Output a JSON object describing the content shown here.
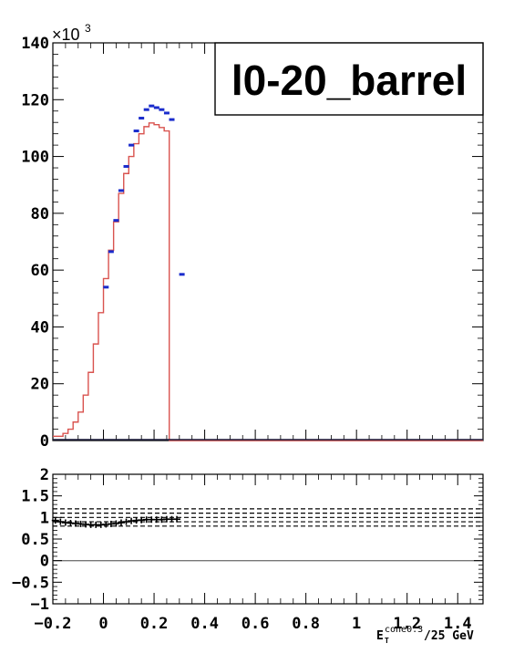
{
  "chart_data": [
    {
      "type": "line",
      "panel": "main",
      "title": "l0-20_barrel",
      "xlim": [
        -0.2,
        1.5
      ],
      "ylim": [
        0,
        140000
      ],
      "y_multiplier_label": "×10",
      "y_multiplier_exponent": "3",
      "y_ticks": [
        {
          "value": 0,
          "label": "0"
        },
        {
          "value": 20000,
          "label": "20"
        },
        {
          "value": 40000,
          "label": "40"
        },
        {
          "value": 60000,
          "label": "60"
        },
        {
          "value": 80000,
          "label": "80"
        },
        {
          "value": 100000,
          "label": "100"
        },
        {
          "value": 120000,
          "label": "120"
        },
        {
          "value": 140000,
          "label": "140"
        }
      ],
      "bin_width": 0.02,
      "series": [
        {
          "name": "",
          "kind": "histogram",
          "color": "#d9534f",
          "bin_low_edges": [
            -0.2,
            -0.18,
            -0.16,
            -0.14,
            -0.12,
            -0.1,
            -0.08,
            -0.06,
            -0.04,
            -0.02,
            0.0,
            0.02,
            0.04,
            0.06,
            0.08,
            0.1,
            0.12,
            0.14,
            0.16,
            0.18,
            0.2,
            0.22,
            0.24,
            0.26,
            0.28,
            0.3,
            0.32,
            0.34
          ],
          "values": [
            1500,
            1500,
            2500,
            4000,
            6500,
            10000,
            16000,
            24000,
            34000,
            45000,
            57000,
            67000,
            77000,
            87000,
            94000,
            100000,
            104500,
            108000,
            110500,
            111800,
            111200,
            110200,
            109000,
            0,
            0,
            0,
            0,
            0
          ]
        },
        {
          "name": "",
          "kind": "points",
          "color": "#1a2ccc",
          "x": [
            0.01,
            0.03,
            0.05,
            0.07,
            0.09,
            0.11,
            0.13,
            0.15,
            0.17,
            0.19,
            0.21,
            0.23,
            0.25,
            0.27,
            0.31
          ],
          "y": [
            54000,
            66500,
            77500,
            88000,
            96500,
            104000,
            109000,
            113500,
            116500,
            117800,
            117200,
            116500,
            115300,
            113000,
            58500
          ]
        },
        {
          "name": "",
          "kind": "baseline",
          "color": "#1a2ccc",
          "x": [
            -0.2,
            1.5
          ],
          "y": [
            0,
            0
          ]
        }
      ]
    },
    {
      "type": "scatter",
      "panel": "ratio",
      "xlim": [
        -0.2,
        1.5
      ],
      "ylim": [
        -1,
        2
      ],
      "xlabel_main": "E",
      "xlabel_sub": "T",
      "xlabel_sup": "cone0.3",
      "xlabel_rest": "/25 GeV",
      "x_ticks": [
        {
          "value": -0.2,
          "label": "−0.2"
        },
        {
          "value": 0,
          "label": "0"
        },
        {
          "value": 0.2,
          "label": "0.2"
        },
        {
          "value": 0.4,
          "label": "0.4"
        },
        {
          "value": 0.6,
          "label": "0.6"
        },
        {
          "value": 0.8,
          "label": "0.8"
        },
        {
          "value": 1.0,
          "label": "1"
        },
        {
          "value": 1.2,
          "label": "1.2"
        },
        {
          "value": 1.4,
          "label": "1.4"
        }
      ],
      "y_ticks": [
        {
          "value": -1,
          "label": "−1"
        },
        {
          "value": -0.5,
          "label": "−0.5"
        },
        {
          "value": 0,
          "label": "0"
        },
        {
          "value": 0.5,
          "label": "0.5"
        },
        {
          "value": 1,
          "label": "1"
        },
        {
          "value": 1.5,
          "label": "1.5"
        },
        {
          "value": 2,
          "label": "2"
        }
      ],
      "reference_lines_dashed": [
        0.8,
        0.9,
        1.0,
        1.1,
        1.2
      ],
      "zero_line": 0,
      "x": [
        -0.19,
        -0.17,
        -0.15,
        -0.13,
        -0.11,
        -0.09,
        -0.07,
        -0.05,
        -0.03,
        -0.01,
        0.01,
        0.03,
        0.05,
        0.07,
        0.09,
        0.11,
        0.13,
        0.15,
        0.17,
        0.19,
        0.21,
        0.23,
        0.25,
        0.27,
        0.29
      ],
      "y": [
        0.93,
        0.9,
        0.88,
        0.87,
        0.86,
        0.85,
        0.84,
        0.83,
        0.83,
        0.83,
        0.84,
        0.85,
        0.86,
        0.88,
        0.9,
        0.92,
        0.93,
        0.94,
        0.95,
        0.95,
        0.95,
        0.95,
        0.96,
        0.96,
        0.96
      ]
    }
  ]
}
